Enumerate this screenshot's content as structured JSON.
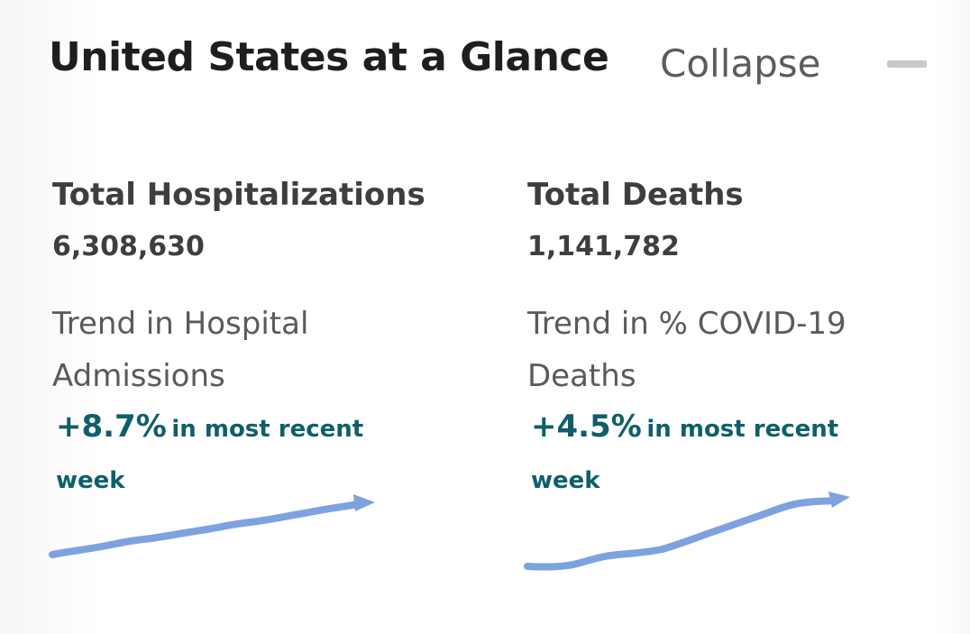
{
  "header": {
    "title": "United States at a Glance",
    "collapse_label": "Collapse"
  },
  "metrics": [
    {
      "title": "Total Hospitalizations",
      "value": "6,308,630",
      "trend_label": "Trend in Hospital Admissions",
      "trend_change": "+8.7%",
      "trend_suffix": "in most recent week",
      "trend_direction": "up",
      "sparkline_color": "#7ea2e0"
    },
    {
      "title": "Total Deaths",
      "value": "1,141,782",
      "trend_label": "Trend in % COVID-19 Deaths",
      "trend_change": "+4.5%",
      "trend_suffix": "in most recent week",
      "trend_direction": "up",
      "sparkline_color": "#7ea2e0"
    }
  ],
  "colors": {
    "accent_teal": "#0f5f6b",
    "sparkline_blue": "#7ea2e0",
    "title_text": "#1e1e1e"
  }
}
